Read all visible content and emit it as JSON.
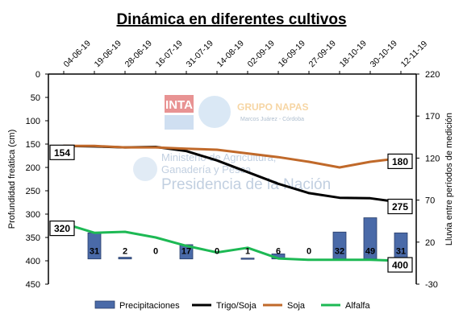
{
  "chart_data": {
    "type": "line",
    "title": "Dinámica en diferentes cultivos",
    "ylabel_left": "Profundidad freática (cm)",
    "ylabel_right": "Lluvia entre períodos de medición",
    "ylim_left": [
      450,
      0
    ],
    "ylim_right": [
      -30,
      220
    ],
    "yticks_left": [
      0,
      50,
      100,
      150,
      200,
      250,
      300,
      350,
      400,
      450
    ],
    "yticks_right": [
      220,
      170,
      120,
      70,
      20,
      -30
    ],
    "categories": [
      "04-06-19",
      "19-06-19",
      "28-06-19",
      "16-07-19",
      "31-07-19",
      "14-08-19",
      "02-09-19",
      "16-09-19",
      "27-09-19",
      "18-10-19",
      "30-10-19",
      "12-11-19"
    ],
    "series": [
      {
        "name": "Precipitaciones",
        "type": "bar",
        "axis": "right",
        "color": "#4a6aa8",
        "values": [
          null,
          31,
          2,
          0,
          17,
          0,
          1,
          6,
          0,
          32,
          49,
          31
        ],
        "labels": [
          "",
          "31",
          "2",
          "0",
          "17",
          "0",
          "1",
          "6",
          "0",
          "32",
          "49",
          "31"
        ]
      },
      {
        "name": "Trigo/Soja",
        "type": "line",
        "axis": "left",
        "color": "#000000",
        "values": [
          154,
          155,
          157,
          156,
          165,
          185,
          210,
          235,
          255,
          265,
          266,
          275
        ]
      },
      {
        "name": "Soja",
        "type": "line",
        "axis": "left",
        "color": "#c0692a",
        "values": [
          154,
          154,
          157,
          157,
          160,
          162,
          170,
          178,
          188,
          200,
          188,
          180
        ]
      },
      {
        "name": "Alfalfa",
        "type": "line",
        "axis": "left",
        "color": "#1db954",
        "values": [
          320,
          340,
          338,
          350,
          368,
          382,
          372,
          395,
          398,
          398,
          398,
          400
        ]
      }
    ],
    "annotations": [
      "154",
      "180",
      "275",
      "320",
      "400"
    ],
    "grid": false,
    "legend_position": "bottom"
  },
  "watermark": {
    "logo_text": "INTA",
    "group_name": "GRUPO NAPAS",
    "group_place": "Marcos Juárez - Córdoba",
    "ministry_line1": "Ministerio de Agricultura,",
    "ministry_line2": "Ganadería y Pesca",
    "presidency": "Presidencia de la Nación"
  }
}
